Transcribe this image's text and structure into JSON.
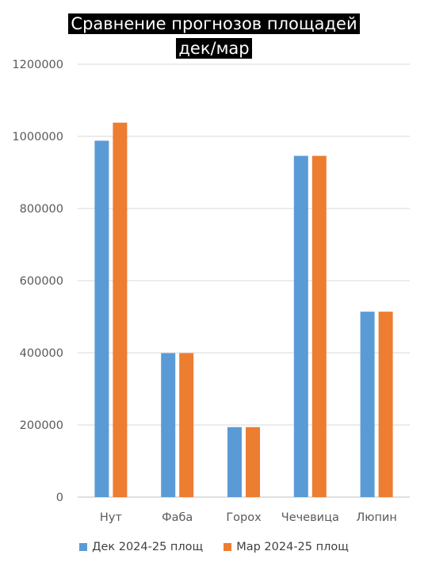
{
  "chart_data": {
    "type": "bar",
    "title_lines": [
      "Сравнение прогнозов площадей",
      "дек/мар"
    ],
    "categories": [
      "Нут",
      "Фаба",
      "Горох",
      "Чечевица",
      "Люпин"
    ],
    "series": [
      {
        "name": "Дек 2024-25 площ",
        "color": "#5b9bd5",
        "values": [
          988000,
          399000,
          194000,
          946000,
          514000
        ]
      },
      {
        "name": "Мар 2024-25 площ",
        "color": "#ed7d31",
        "values": [
          1038000,
          399000,
          194000,
          946000,
          514000
        ]
      }
    ],
    "ylim": [
      0,
      1200000
    ],
    "yticks": [
      "0",
      "200000",
      "400000",
      "600000",
      "800000",
      "1000000",
      "1200000"
    ],
    "grid": true,
    "legend_position": "bottom"
  }
}
